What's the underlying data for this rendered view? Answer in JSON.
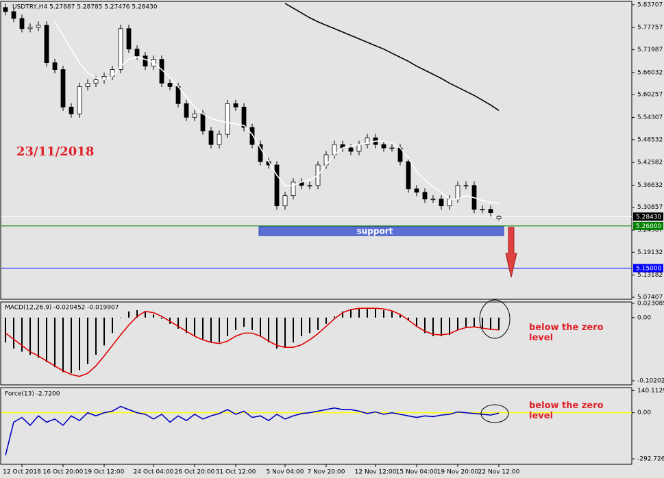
{
  "chart_data": [
    {
      "type": "candlestick",
      "title": "USDTRY,H4  5.27887 5.28785 5.27476 5.28430",
      "categories": [
        null,
        null,
        "12 Oct 2018",
        null,
        null,
        null,
        null,
        "16 Oct 20:00",
        null,
        null,
        null,
        null,
        "19 Oct 12:00",
        null,
        null,
        null,
        null,
        null,
        "24 Oct 04:00",
        null,
        null,
        null,
        null,
        "26 Oct 20:00",
        null,
        null,
        null,
        null,
        "31 Oct 12:00",
        null,
        null,
        null,
        null,
        null,
        "5 Nov 04:00",
        null,
        null,
        null,
        null,
        "7 Nov 20:00",
        null,
        null,
        null,
        null,
        null,
        "12 Nov 12:00",
        null,
        null,
        null,
        null,
        "15 Nov 04:00",
        null,
        null,
        null,
        null,
        "19 Nov 20:00",
        null,
        null,
        null,
        null,
        "22 Nov 12:00"
      ],
      "ohlc": [
        [
          5.83,
          5.84,
          5.8092,
          5.8192
        ],
        [
          5.8192,
          5.8292,
          5.7914,
          5.8014
        ],
        [
          5.8014,
          5.8114,
          5.7648,
          5.7748
        ],
        [
          5.7748,
          5.7883,
          5.7648,
          5.7783
        ],
        [
          5.7783,
          5.7936,
          5.7683,
          5.7836
        ],
        [
          5.7836,
          5.7936,
          5.6758,
          5.6858
        ],
        [
          5.6858,
          5.6958,
          5.658,
          5.668
        ],
        [
          5.668,
          5.678,
          5.5602,
          5.5702
        ],
        [
          5.5702,
          5.5802,
          5.5424,
          5.5524
        ],
        [
          5.5524,
          5.6336,
          5.5424,
          5.6236
        ],
        [
          5.6236,
          5.6425,
          5.6136,
          5.6325
        ],
        [
          5.6325,
          5.6514,
          5.6225,
          5.6414
        ],
        [
          5.6414,
          5.6603,
          5.6314,
          5.6503
        ],
        [
          5.6503,
          5.678,
          5.6403,
          5.668
        ],
        [
          5.668,
          5.7848,
          5.658,
          5.7748
        ],
        [
          5.7748,
          5.7848,
          5.7114,
          5.7214
        ],
        [
          5.7214,
          5.7314,
          5.6936,
          5.7036
        ],
        [
          5.7036,
          5.7136,
          5.6669,
          5.6769
        ],
        [
          5.6769,
          5.7047,
          5.6669,
          5.6947
        ],
        [
          5.6947,
          5.7047,
          5.6225,
          5.6325
        ],
        [
          5.6325,
          5.6425,
          5.6136,
          5.6236
        ],
        [
          5.6236,
          5.6336,
          5.5691,
          5.5791
        ],
        [
          5.5791,
          5.5891,
          5.5335,
          5.5435
        ],
        [
          5.5435,
          5.5624,
          5.5335,
          5.5524
        ],
        [
          5.5524,
          5.5624,
          5.498,
          5.508
        ],
        [
          5.508,
          5.518,
          5.4624,
          5.4724
        ],
        [
          5.4724,
          5.5091,
          5.4624,
          5.4991
        ],
        [
          5.4991,
          5.5891,
          5.4891,
          5.5791
        ],
        [
          5.5791,
          5.5891,
          5.5602,
          5.5702
        ],
        [
          5.5702,
          5.5802,
          5.5069,
          5.5169
        ],
        [
          5.5169,
          5.5269,
          5.4624,
          5.4724
        ],
        [
          5.4724,
          5.4824,
          5.4179,
          5.4279
        ],
        [
          5.4279,
          5.4379,
          5.409,
          5.419
        ],
        [
          5.419,
          5.429,
          5.3023,
          5.3123
        ],
        [
          5.3123,
          5.349,
          5.3023,
          5.339
        ],
        [
          5.339,
          5.3845,
          5.329,
          5.3745
        ],
        [
          5.3745,
          5.3845,
          5.3557,
          5.3657
        ],
        [
          5.3657,
          5.3757,
          5.3557,
          5.3657
        ],
        [
          5.3657,
          5.429,
          5.3557,
          5.419
        ],
        [
          5.419,
          5.4557,
          5.409,
          5.4457
        ],
        [
          5.4457,
          5.4824,
          5.4357,
          5.4724
        ],
        [
          5.4724,
          5.4824,
          5.4535,
          5.4635
        ],
        [
          5.4635,
          5.4735,
          5.4446,
          5.4546
        ],
        [
          5.4546,
          5.4824,
          5.4446,
          5.4724
        ],
        [
          5.4724,
          5.5002,
          5.4624,
          5.4902
        ],
        [
          5.4902,
          5.5002,
          5.4624,
          5.4724
        ],
        [
          5.4724,
          5.4824,
          5.4535,
          5.4635
        ],
        [
          5.4635,
          5.4735,
          5.4535,
          5.4635
        ],
        [
          5.4635,
          5.4735,
          5.4179,
          5.4279
        ],
        [
          5.4279,
          5.4379,
          5.3468,
          5.3568
        ],
        [
          5.3568,
          5.3668,
          5.3379,
          5.3479
        ],
        [
          5.3479,
          5.3579,
          5.3201,
          5.3301
        ],
        [
          5.3301,
          5.3401,
          5.3201,
          5.3301
        ],
        [
          5.3301,
          5.3401,
          5.3023,
          5.3123
        ],
        [
          5.3123,
          5.3401,
          5.3023,
          5.3301
        ],
        [
          5.3301,
          5.3757,
          5.3201,
          5.3657
        ],
        [
          5.3657,
          5.3757,
          5.3557,
          5.3657
        ],
        [
          5.3657,
          5.3757,
          5.2934,
          5.3034
        ],
        [
          5.3034,
          5.3134,
          5.2934,
          5.3034
        ],
        [
          5.3034,
          5.3134,
          5.2845,
          5.2945
        ],
        [
          5.27887,
          5.28785,
          5.27476,
          5.2843
        ]
      ],
      "up_color": "#ffffff",
      "down_color": "#000000",
      "series": [
        {
          "type": "line",
          "color": "#ffffff",
          "values": [
            null,
            null,
            null,
            null,
            null,
            null,
            5.7925,
            5.757,
            5.7214,
            5.6858,
            5.6591,
            5.6467,
            5.6414,
            5.6503,
            5.6769,
            5.6947,
            5.7001,
            5.6947,
            5.6858,
            5.668,
            5.6467,
            5.6236,
            5.5969,
            5.5702,
            5.5524,
            5.54,
            5.5347,
            5.5293,
            5.5258,
            5.5222,
            5.4991,
            5.4635,
            5.4279,
            5.3924,
            5.3657,
            5.3657,
            5.3745,
            5.3799,
            5.3924,
            5.419,
            5.4457,
            5.4635,
            5.4688,
            5.4724,
            5.4759,
            5.4813,
            5.4813,
            5.4759,
            5.4635,
            5.4368,
            5.4013,
            5.3799,
            5.3621,
            5.3479,
            5.3301,
            5.3301,
            5.339,
            5.3337,
            5.3266,
            5.3212,
            5.3194
          ]
        },
        {
          "type": "line",
          "color": "#000000",
          "values": [
            null,
            null,
            null,
            null,
            null,
            null,
            null,
            null,
            null,
            null,
            null,
            null,
            null,
            null,
            null,
            null,
            null,
            null,
            null,
            null,
            null,
            null,
            null,
            null,
            null,
            null,
            null,
            null,
            null,
            null,
            null,
            null,
            null,
            null,
            5.8406,
            5.8281,
            5.8157,
            5.8032,
            5.7925,
            5.7836,
            5.7748,
            5.7659,
            5.757,
            5.7481,
            5.7392,
            5.7303,
            5.7214,
            5.7107,
            5.7001,
            5.6894,
            5.6769,
            5.6663,
            5.6556,
            5.6449,
            5.6325,
            5.6218,
            5.6111,
            5.6005,
            5.588,
            5.5755,
            5.5613
          ]
        }
      ],
      "hlines": [
        {
          "value": 5.2843,
          "label": "5.28430",
          "color": "#ffffff",
          "tag": "#000000"
        },
        {
          "value": 5.26,
          "label": "5.26000",
          "color": "#008000",
          "tag": "#008000"
        },
        {
          "value": 5.15,
          "label": "5.15000",
          "color": "#0000ff",
          "tag": "#0000ff"
        }
      ],
      "ylim": [
        5.0687,
        5.8459
      ],
      "yticks": [
        5.83707,
        5.77757,
        5.71987,
        5.66032,
        5.60257,
        5.54307,
        5.48532,
        5.42582,
        5.36632,
        5.30857,
        5.24907,
        5.19132,
        5.13182,
        5.07407
      ],
      "annotations": [
        "23/11/2018",
        "support"
      ]
    },
    {
      "type": "macd",
      "title": "MACD(12,26,9) -0.020452 -0.019907",
      "series": [
        {
          "type": "bar",
          "color": "#000000",
          "values": [
            -0.04,
            -0.05,
            -0.055,
            -0.06,
            -0.065,
            -0.072,
            -0.08,
            -0.088,
            -0.09,
            -0.085,
            -0.075,
            -0.06,
            -0.045,
            -0.025,
            0,
            0.01,
            0.012,
            0.01,
            0.005,
            -0.002,
            -0.01,
            -0.018,
            -0.025,
            -0.03,
            -0.035,
            -0.04,
            -0.04,
            -0.03,
            -0.02,
            -0.015,
            -0.02,
            -0.03,
            -0.04,
            -0.05,
            -0.048,
            -0.04,
            -0.03,
            -0.025,
            -0.02,
            -0.01,
            0.002,
            0.01,
            0.014,
            0.015,
            0.016,
            0.015,
            0.012,
            0.01,
            0.005,
            -0.005,
            -0.015,
            -0.025,
            -0.03,
            -0.03,
            -0.028,
            -0.02,
            -0.015,
            -0.015,
            -0.018,
            -0.02,
            -0.020452
          ]
        },
        {
          "type": "line",
          "color": "#e00000",
          "values": [
            -0.025,
            -0.035,
            -0.045,
            -0.055,
            -0.062,
            -0.07,
            -0.078,
            -0.086,
            -0.092,
            -0.095,
            -0.09,
            -0.078,
            -0.062,
            -0.045,
            -0.028,
            -0.012,
            0.002,
            0.01,
            0.008,
            0.002,
            -0.006,
            -0.014,
            -0.022,
            -0.03,
            -0.036,
            -0.04,
            -0.042,
            -0.038,
            -0.03,
            -0.025,
            -0.025,
            -0.03,
            -0.038,
            -0.045,
            -0.048,
            -0.048,
            -0.044,
            -0.036,
            -0.026,
            -0.014,
            -0.002,
            0.008,
            0.013,
            0.015,
            0.015,
            0.015,
            0.014,
            0.011,
            0.005,
            -0.004,
            -0.014,
            -0.022,
            -0.027,
            -0.028,
            -0.026,
            -0.02,
            -0.016,
            -0.015,
            -0.017,
            -0.019,
            -0.019907
          ]
        }
      ],
      "ylim": [
        -0.1087,
        0.0252
      ],
      "yticks": [
        0.023085,
        {
          "value": 0,
          "label": "0.00"
        },
        -0.102028
      ],
      "annotation": "below the zero level"
    },
    {
      "type": "line",
      "title": "Force(13) -2.7200",
      "series": [
        {
          "type": "line",
          "color": "#0000c0",
          "values": [
            -270,
            -60,
            -30,
            -80,
            -20,
            -60,
            -40,
            -80,
            -20,
            -50,
            0,
            -20,
            0,
            10,
            40,
            20,
            0,
            -10,
            -40,
            -10,
            -60,
            -20,
            -50,
            -10,
            -40,
            -20,
            -5,
            20,
            -10,
            10,
            -30,
            -20,
            -50,
            -10,
            -40,
            -20,
            -5,
            0,
            10,
            20,
            30,
            20,
            20,
            10,
            -5,
            5,
            -10,
            0,
            -10,
            -20,
            -30,
            -20,
            -25,
            -15,
            -10,
            5,
            0,
            -5,
            -10,
            -15,
            -2.72
          ]
        }
      ],
      "zero_line_color": "#ffff00",
      "ylim": [
        -327.2,
        159.3
      ],
      "yticks": [
        140.1129,
        {
          "value": 0,
          "label": "0.00"
        },
        -292.7263
      ],
      "annotation": "below the zero level"
    }
  ]
}
